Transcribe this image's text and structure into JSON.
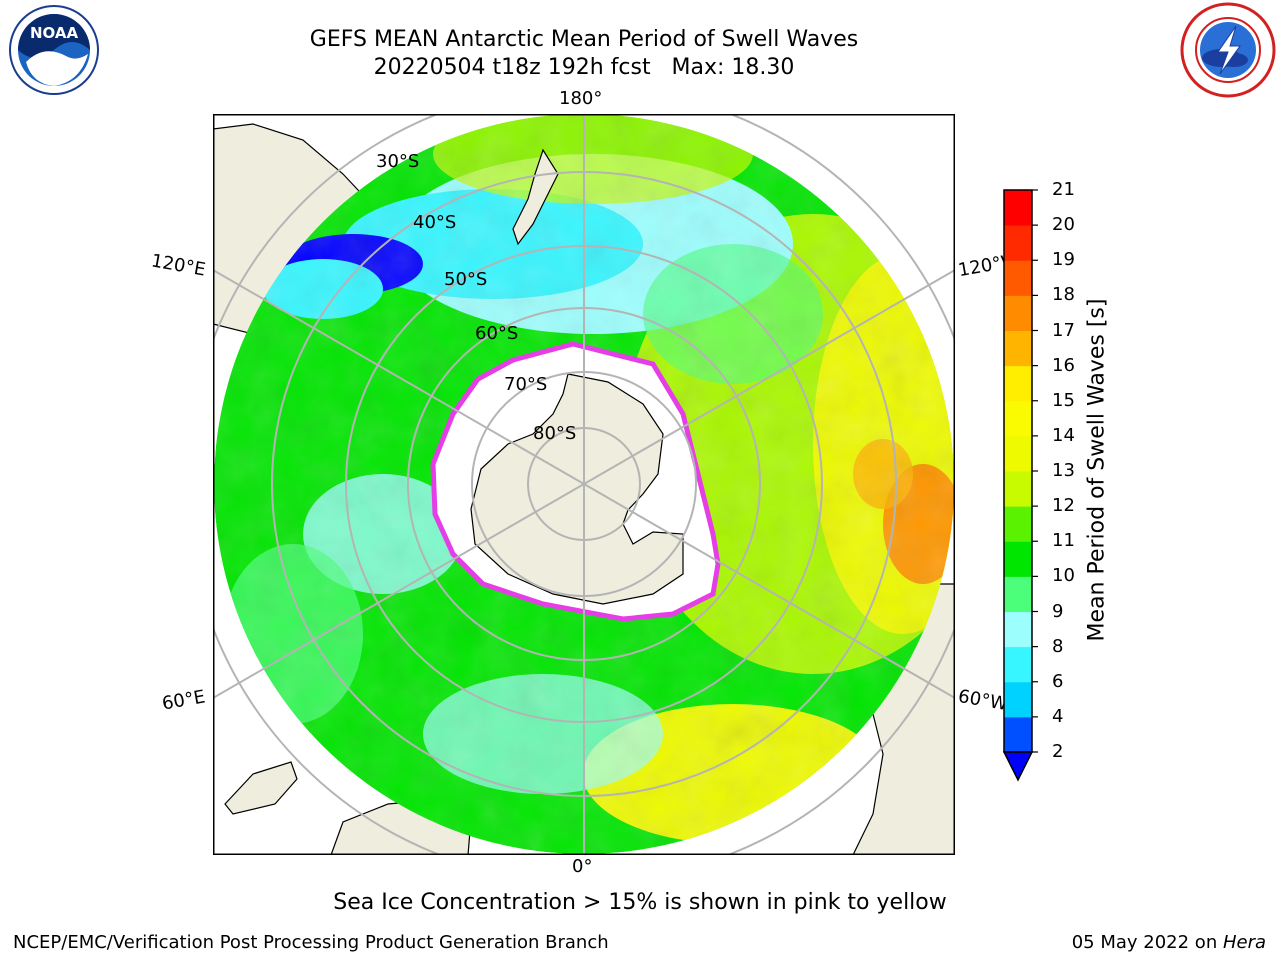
{
  "header": {
    "title_line1": "GEFS MEAN Antarctic Mean Period of Swell Waves",
    "title_line2": "20220504 t18z 192h fcst   Max: 18.30"
  },
  "map": {
    "projection": "south-polar-stereographic",
    "latitude_labels": [
      "30°S",
      "40°S",
      "50°S",
      "60°S",
      "70°S",
      "80°S"
    ],
    "longitude_labels": {
      "top": "180°",
      "bottom": "0°",
      "left_upper": "120°E",
      "left_lower": "60°E",
      "right_upper": "120°W",
      "right_lower": "60°W"
    },
    "colors": {
      "land": "#efedde",
      "sea_ice": "#ffffff",
      "ice_edge": "#e63ee6",
      "grid": "#b4b4b4",
      "coast": "#000000"
    }
  },
  "colorbar": {
    "title": "Mean Period of Swell Waves [s]",
    "ticks": [
      "2",
      "4",
      "6",
      "8",
      "9",
      "10",
      "11",
      "12",
      "13",
      "14",
      "15",
      "16",
      "17",
      "18",
      "19",
      "20",
      "21"
    ],
    "colors": [
      "#0050ff",
      "#00d2ff",
      "#38f6ff",
      "#9cfffe",
      "#4bff7a",
      "#00e600",
      "#5af200",
      "#c8fa00",
      "#eefa00",
      "#fafa00",
      "#ffee00",
      "#ffb400",
      "#ff8c00",
      "#ff5a00",
      "#ff2a00",
      "#ff0000"
    ],
    "under_color": "#0000ff"
  },
  "logos": {
    "left": "noaa-logo",
    "right": "national-weather-service-logo"
  },
  "note": "Sea Ice Concentration > 15% is shown in pink to yellow",
  "footer": {
    "left": "NCEP/EMC/Verification Post Processing Product Generation Branch",
    "right_date": "05 May 2022 on ",
    "right_host": "Hera"
  }
}
